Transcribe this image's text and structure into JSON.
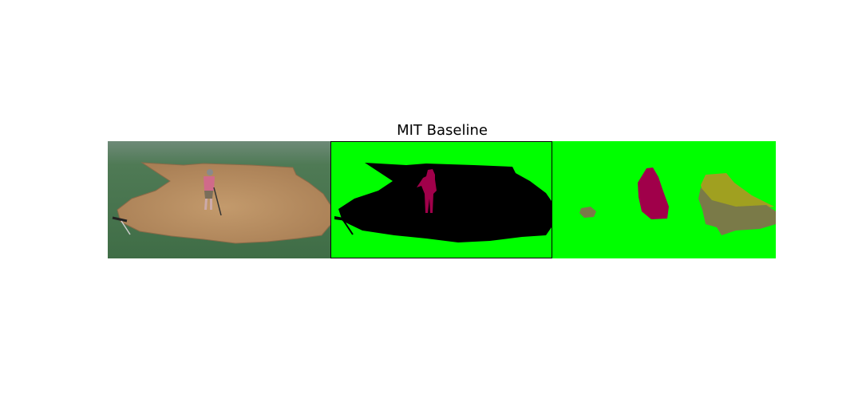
{
  "title": "MIT Baseline"
}
